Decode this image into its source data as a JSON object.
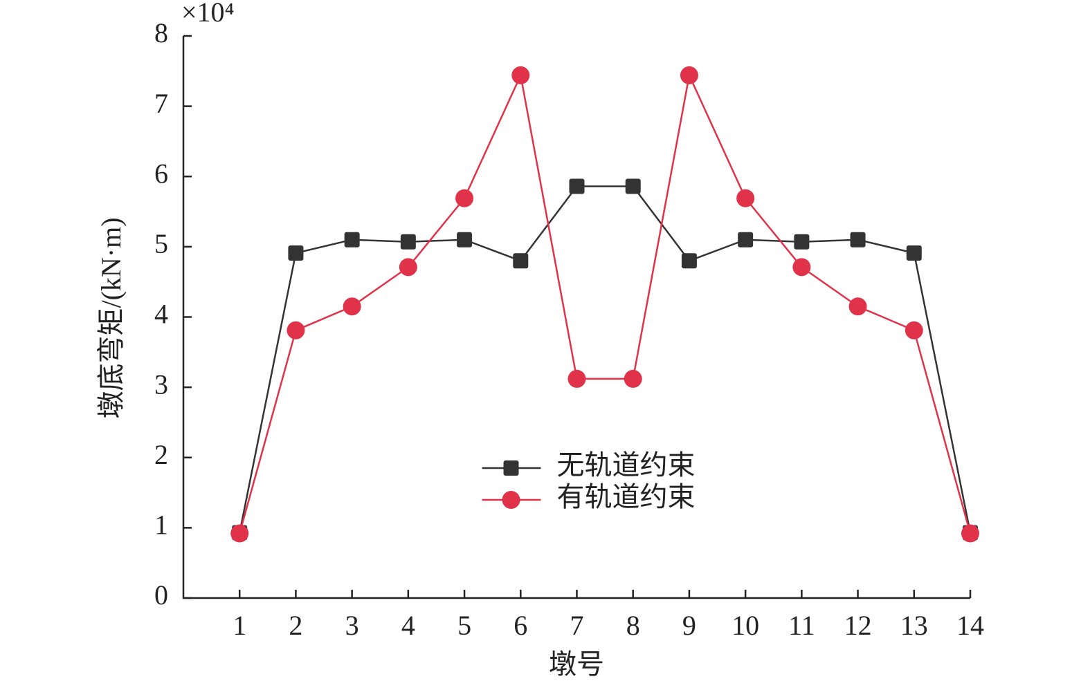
{
  "chart_data": {
    "type": "line",
    "x_label": "墩号",
    "y_label": "墩底弯矩/(kN·m)",
    "y_multiplier": "×10⁴",
    "x": [
      1,
      2,
      3,
      4,
      5,
      6,
      7,
      8,
      9,
      10,
      11,
      12,
      13,
      14
    ],
    "xlim": [
      0,
      14
    ],
    "xticks": [
      1,
      2,
      3,
      4,
      5,
      6,
      7,
      8,
      9,
      10,
      11,
      12,
      13,
      14
    ],
    "ylim": [
      0,
      8
    ],
    "yticks": [
      0,
      1,
      2,
      3,
      4,
      5,
      6,
      7,
      8
    ],
    "legend": "center",
    "series": [
      {
        "name": "无轨道约束",
        "color": "#333333",
        "marker": "square",
        "values": [
          0.93,
          4.91,
          5.1,
          5.07,
          5.1,
          4.8,
          5.86,
          5.86,
          4.8,
          5.1,
          5.07,
          5.1,
          4.91,
          0.93
        ]
      },
      {
        "name": "有轨道约束",
        "color": "#e0334a",
        "marker": "circle",
        "values": [
          0.92,
          3.81,
          4.15,
          4.71,
          5.69,
          7.44,
          3.12,
          3.12,
          7.44,
          5.69,
          4.71,
          4.15,
          3.81,
          0.92
        ]
      }
    ]
  }
}
